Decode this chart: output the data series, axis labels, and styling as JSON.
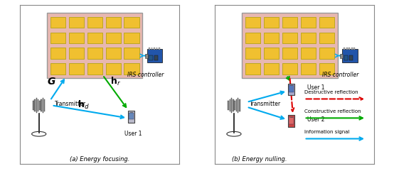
{
  "bg_color": "#ffffff",
  "irs_fill": "#e8b8b0",
  "cell_fill": "#f0c030",
  "cell_edge": "#aaa000",
  "arrow_cyan": "#00aaee",
  "arrow_green": "#00aa00",
  "arrow_red": "#dd0000",
  "label_a": "(a) Energy focusing.",
  "label_b": "(b) Energy nulling.",
  "irs_label": "IRS controller",
  "transmitter_label": "Transmitter",
  "user1_label": "User 1",
  "user2_label": "User 2",
  "g_label": "G",
  "hr_label": "h",
  "hd_label": "h",
  "legend_destr": "Destructive reflection",
  "legend_constr": "Constructive reflection",
  "legend_info": "Information signal"
}
